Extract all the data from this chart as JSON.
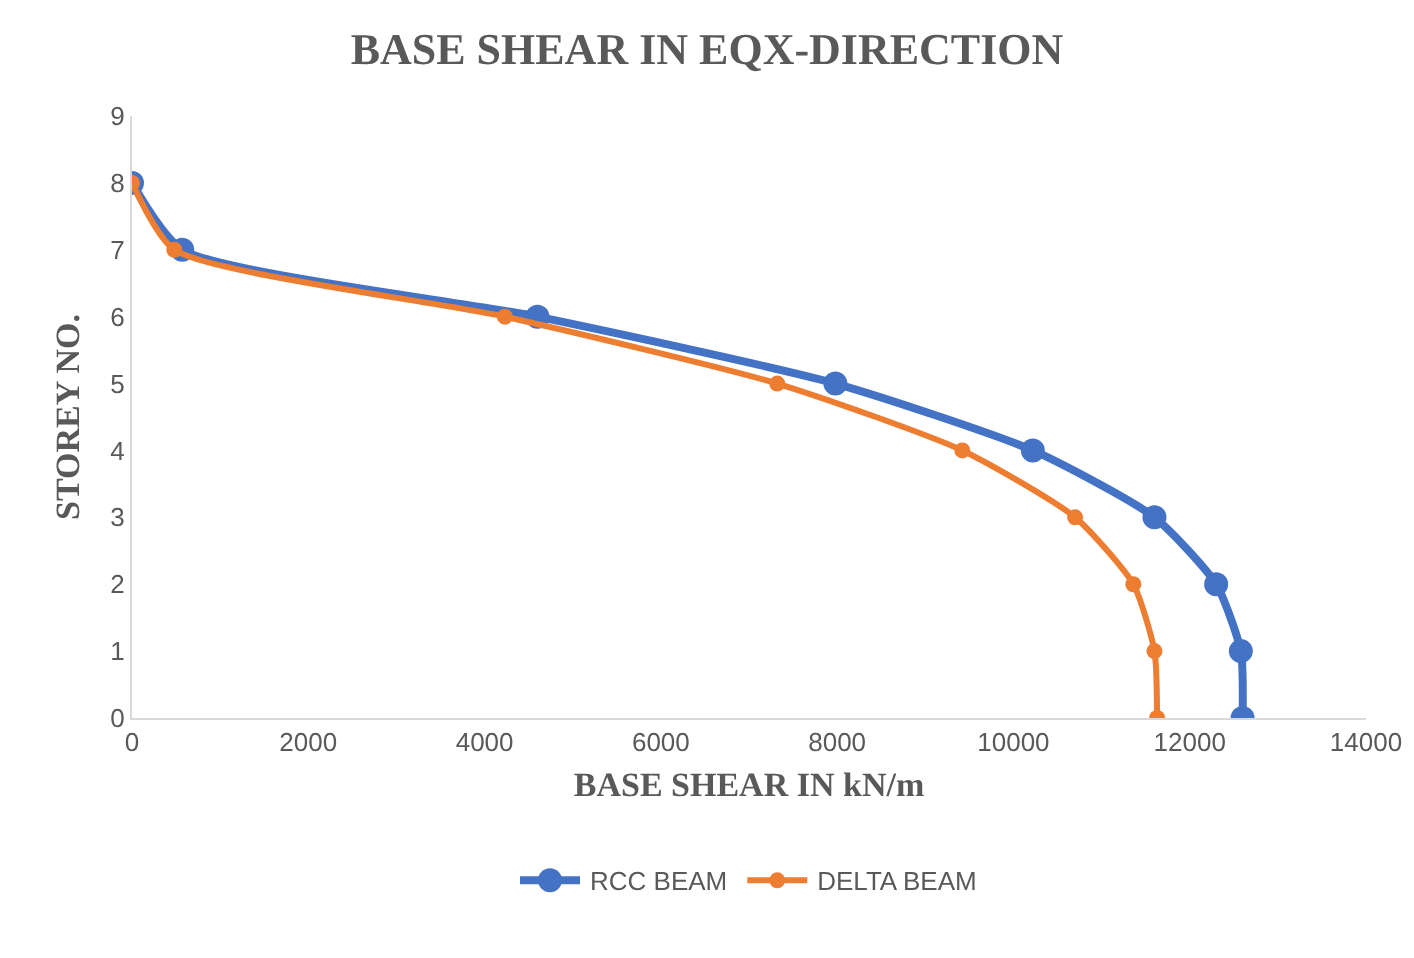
{
  "chart_data": {
    "type": "line",
    "title": "BASE SHEAR IN EQX-DIRECTION",
    "xlabel": "BASE SHEAR IN kN/m",
    "ylabel": "STOREY NO.",
    "xlim": [
      0,
      14000
    ],
    "xticks": [
      0,
      2000,
      4000,
      6000,
      8000,
      10000,
      12000,
      14000
    ],
    "ylim": [
      0,
      9
    ],
    "yticks": [
      0,
      1,
      2,
      3,
      4,
      5,
      6,
      7,
      8,
      9
    ],
    "grid": false,
    "legend": "bottom",
    "marker": "circle",
    "line_style": "solid",
    "series": [
      {
        "name": "RCC BEAM",
        "color": "#4472c4",
        "x": [
          12600,
          12580,
          12300,
          11600,
          10220,
          7980,
          4600,
          570,
          0
        ],
        "values": [
          0,
          1,
          2,
          3,
          4,
          5,
          6,
          7,
          8
        ]
      },
      {
        "name": "DELTA BEAM",
        "color": "#ed7d31",
        "x": [
          11630,
          11600,
          11360,
          10700,
          9420,
          7320,
          4230,
          480,
          0
        ],
        "values": [
          0,
          1,
          2,
          3,
          4,
          5,
          6,
          7,
          8
        ]
      }
    ]
  }
}
